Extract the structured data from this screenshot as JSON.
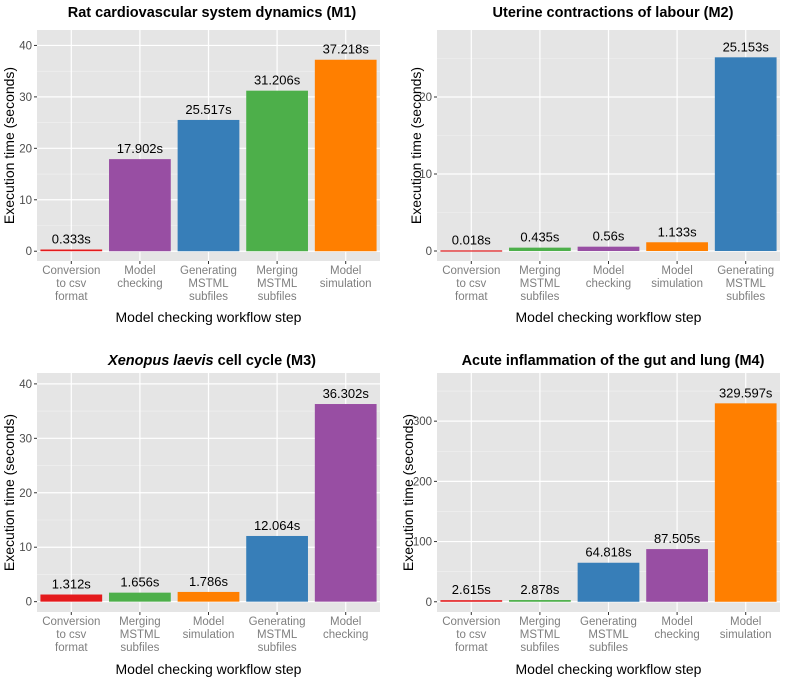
{
  "chart_data": [
    {
      "type": "bar",
      "title": "Rat cardiovascular system dynamics (M1)",
      "title_italic_part": "",
      "xlabel": "Model checking workflow step",
      "ylabel": "Execution time (seconds)",
      "ylim": [
        -1.9,
        43
      ],
      "yticks": [
        0,
        10,
        20,
        30,
        40
      ],
      "tick_labels": [
        "0",
        "10",
        "20",
        "30",
        "40"
      ],
      "grid": true,
      "background": "#e5e5e5",
      "categories": [
        [
          "Conversion",
          "to csv",
          "format"
        ],
        [
          "Model",
          "checking"
        ],
        [
          "Generating",
          "MSTML",
          "subfiles"
        ],
        [
          "Merging",
          "MSTML",
          "subfiles"
        ],
        [
          "Model",
          "simulation"
        ]
      ],
      "values": [
        0.333,
        17.902,
        25.517,
        31.206,
        37.218
      ],
      "data_labels": [
        "0.333s",
        "17.902s",
        "25.517s",
        "31.206s",
        "37.218s"
      ],
      "colors": [
        "#e41a1c",
        "#984ea3",
        "#377eb8",
        "#4daf4a",
        "#ff7f00"
      ]
    },
    {
      "type": "bar",
      "title": "Uterine contractions of labour (M2)",
      "title_italic_part": "",
      "xlabel": "Model checking workflow step",
      "ylabel": "Execution time (seconds)",
      "ylim": [
        -1.3,
        28.7
      ],
      "yticks": [
        0,
        10,
        20
      ],
      "tick_labels": [
        "0",
        "10",
        "20"
      ],
      "grid": true,
      "background": "#e5e5e5",
      "categories": [
        [
          "Conversion",
          "to csv",
          "format"
        ],
        [
          "Merging",
          "MSTML",
          "subfiles"
        ],
        [
          "Model",
          "checking"
        ],
        [
          "Model",
          "simulation"
        ],
        [
          "Generating",
          "MSTML",
          "subfiles"
        ]
      ],
      "values": [
        0.018,
        0.435,
        0.56,
        1.133,
        25.153
      ],
      "data_labels": [
        "0.018s",
        "0.435s",
        "0.56s",
        "1.133s",
        "25.153s"
      ],
      "colors": [
        "#e41a1c",
        "#4daf4a",
        "#984ea3",
        "#ff7f00",
        "#377eb8"
      ]
    },
    {
      "type": "bar",
      "title": "cell cycle (M3)",
      "title_italic_part": "Xenopus laevis",
      "xlabel": "Model checking workflow step",
      "ylabel": "Execution time (seconds)",
      "ylim": [
        -1.9,
        42
      ],
      "yticks": [
        0,
        10,
        20,
        30,
        40
      ],
      "tick_labels": [
        "0",
        "10",
        "20",
        "30",
        "40"
      ],
      "grid": true,
      "background": "#e5e5e5",
      "categories": [
        [
          "Conversion",
          "to csv",
          "format"
        ],
        [
          "Merging",
          "MSTML",
          "subfiles"
        ],
        [
          "Model",
          "simulation"
        ],
        [
          "Generating",
          "MSTML",
          "subfiles"
        ],
        [
          "Model",
          "checking"
        ]
      ],
      "values": [
        1.312,
        1.656,
        1.786,
        12.064,
        36.302
      ],
      "data_labels": [
        "1.312s",
        "1.656s",
        "1.786s",
        "12.064s",
        "36.302s"
      ],
      "colors": [
        "#e41a1c",
        "#4daf4a",
        "#ff7f00",
        "#377eb8",
        "#984ea3"
      ]
    },
    {
      "type": "bar",
      "title": "Acute inflammation of the gut and lung (M4)",
      "title_italic_part": "",
      "xlabel": "Model checking workflow step",
      "ylabel": "Execution time (seconds)",
      "ylim": [
        -17,
        380
      ],
      "yticks": [
        0,
        100,
        200,
        300
      ],
      "tick_labels": [
        "0",
        "100",
        "200",
        "300"
      ],
      "grid": true,
      "background": "#e5e5e5",
      "categories": [
        [
          "Conversion",
          "to csv",
          "format"
        ],
        [
          "Merging",
          "MSTML",
          "subfiles"
        ],
        [
          "Generating",
          "MSTML",
          "subfiles"
        ],
        [
          "Model",
          "checking"
        ],
        [
          "Model",
          "simulation"
        ]
      ],
      "values": [
        2.615,
        2.878,
        64.818,
        87.505,
        329.597
      ],
      "data_labels": [
        "2.615s",
        "2.878s",
        "64.818s",
        "87.505s",
        "329.597s"
      ],
      "colors": [
        "#e41a1c",
        "#4daf4a",
        "#377eb8",
        "#984ea3",
        "#ff7f00"
      ]
    }
  ]
}
